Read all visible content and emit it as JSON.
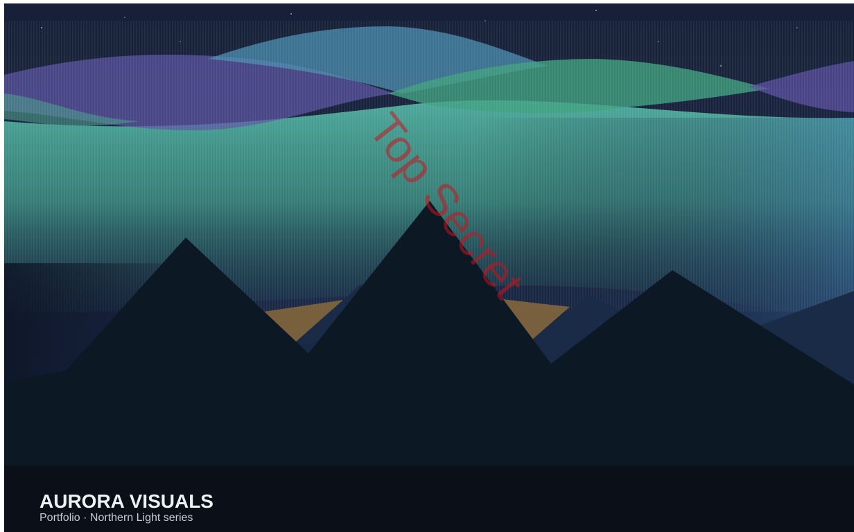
{
  "brand": {
    "title": "AURORA VISUALS",
    "subtitle": "Portfolio · Northern Light series"
  },
  "watermark": "Top Secret"
}
